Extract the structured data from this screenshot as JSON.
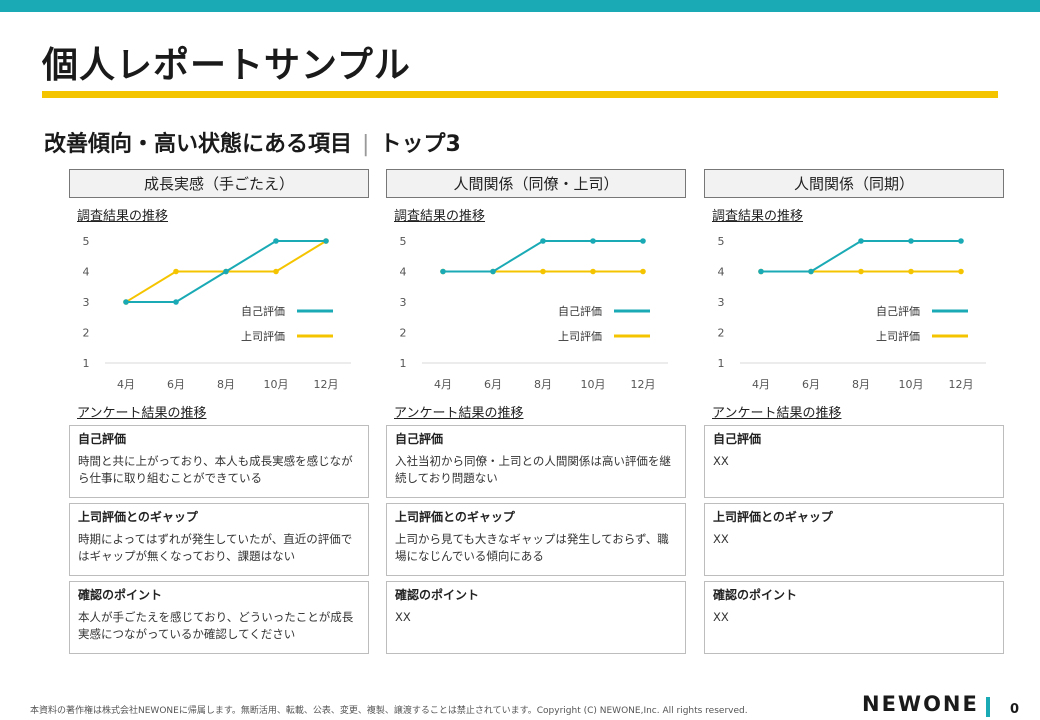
{
  "title": "個人レポートサンプル",
  "subtitle": {
    "main": "改善傾向・高い状態にある項目",
    "sep": "|",
    "rank": "トップ3"
  },
  "colors": {
    "self": "#1aaab5",
    "boss": "#f5c400",
    "brand": "#1aaab5",
    "accent_line": "#f5c400"
  },
  "columns": [
    {
      "header": "成長実感（手ごたえ）",
      "chart_label": "調査結果の推移",
      "survey_label": "アンケート結果の推移",
      "boxes": [
        {
          "title": "自己評価",
          "body": "時間と共に上がっており、本人も成長実感を感じながら仕事に取り組むことができている"
        },
        {
          "title": "上司評価とのギャップ",
          "body": "時期によってはずれが発生していたが、直近の評価ではギャップが無くなっており、課題はない"
        },
        {
          "title": "確認のポイント",
          "body": "本人が手ごたえを感じており、どういったことが成長実感につながっているか確認してください"
        }
      ]
    },
    {
      "header": "人間関係（同僚・上司）",
      "chart_label": "調査結果の推移",
      "survey_label": "アンケート結果の推移",
      "boxes": [
        {
          "title": "自己評価",
          "body": "入社当初から同僚・上司との人間関係は高い評価を継続しており問題ない"
        },
        {
          "title": "上司評価とのギャップ",
          "body": "上司から見ても大きなギャップは発生しておらず、職場になじんでいる傾向にある"
        },
        {
          "title": "確認のポイント",
          "body": "XX"
        }
      ]
    },
    {
      "header": "人間関係（同期）",
      "chart_label": "調査結果の推移",
      "survey_label": "アンケート結果の推移",
      "boxes": [
        {
          "title": "自己評価",
          "body": "XX"
        },
        {
          "title": "上司評価とのギャップ",
          "body": "XX"
        },
        {
          "title": "確認のポイント",
          "body": "XX"
        }
      ]
    }
  ],
  "chart_data": [
    {
      "type": "line",
      "categories": [
        "4月",
        "6月",
        "8月",
        "10月",
        "12月"
      ],
      "y_ticks": [
        "1",
        "2",
        "3",
        "4",
        "5"
      ],
      "ylim": [
        1,
        5
      ],
      "legend_position": "right",
      "grid": false,
      "series": [
        {
          "name": "自己評価",
          "values": [
            3,
            3,
            4,
            5,
            5
          ]
        },
        {
          "name": "上司評価",
          "values": [
            3,
            4,
            4,
            4,
            5
          ]
        }
      ]
    },
    {
      "type": "line",
      "categories": [
        "4月",
        "6月",
        "8月",
        "10月",
        "12月"
      ],
      "y_ticks": [
        "1",
        "2",
        "3",
        "4",
        "5"
      ],
      "ylim": [
        1,
        5
      ],
      "legend_position": "right",
      "grid": false,
      "series": [
        {
          "name": "自己評価",
          "values": [
            4,
            4,
            5,
            5,
            5
          ]
        },
        {
          "name": "上司評価",
          "values": [
            4,
            4,
            4,
            4,
            4
          ]
        }
      ]
    },
    {
      "type": "line",
      "categories": [
        "4月",
        "6月",
        "8月",
        "10月",
        "12月"
      ],
      "y_ticks": [
        "1",
        "2",
        "3",
        "4",
        "5"
      ],
      "ylim": [
        1,
        5
      ],
      "legend_position": "right",
      "grid": false,
      "series": [
        {
          "name": "自己評価",
          "values": [
            4,
            4,
            5,
            5,
            5
          ]
        },
        {
          "name": "上司評価",
          "values": [
            4,
            4,
            4,
            4,
            4
          ]
        }
      ]
    }
  ],
  "footer": {
    "copyright": "本資料の著作権は株式会社NEWONEに帰属します。無断活用、転載、公表、変更、複製、譲渡することは禁止されています。Copyright (C) NEWONE,Inc. All rights reserved.",
    "logo": "NEWONE",
    "page": "0"
  }
}
